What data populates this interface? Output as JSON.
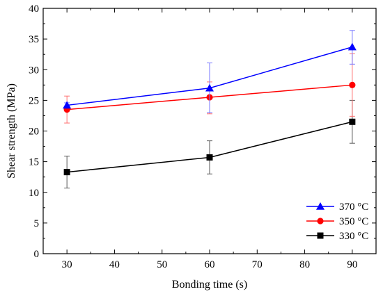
{
  "chart_data": {
    "type": "line",
    "title": "",
    "xlabel": "Bonding time (s)",
    "ylabel": "Shear strength (MPa)",
    "xlim": [
      25,
      95
    ],
    "ylim": [
      0,
      40
    ],
    "xticks": [
      30,
      40,
      50,
      60,
      70,
      80,
      90
    ],
    "yticks": [
      0,
      5,
      10,
      15,
      20,
      25,
      30,
      35,
      40
    ],
    "grid": false,
    "legend_position": "bottom-right",
    "x": [
      30,
      60,
      90
    ],
    "series": [
      {
        "name": "370 °C",
        "color": "#0000ff",
        "marker": "triangle",
        "values": [
          24.2,
          27.0,
          33.7
        ],
        "error_bars": [
          [
            23.8,
            24.6
          ],
          [
            23.0,
            31.1
          ],
          [
            30.9,
            36.4
          ]
        ]
      },
      {
        "name": "350 °C",
        "color": "#ff0000",
        "marker": "circle",
        "values": [
          23.5,
          25.5,
          27.5
        ],
        "error_bars": [
          [
            21.3,
            25.7
          ],
          [
            22.8,
            28.0
          ],
          [
            22.4,
            32.6
          ]
        ]
      },
      {
        "name": "330 °C",
        "color": "#000000",
        "marker": "square",
        "values": [
          13.3,
          15.7,
          21.5
        ],
        "error_bars": [
          [
            10.7,
            15.9
          ],
          [
            13.0,
            18.4
          ],
          [
            18.0,
            25.0
          ]
        ]
      }
    ]
  }
}
